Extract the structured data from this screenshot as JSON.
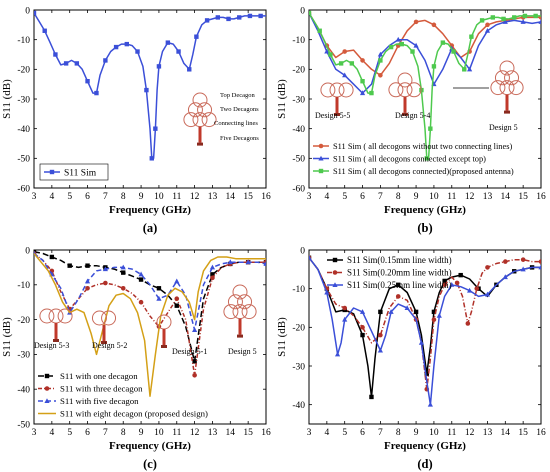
{
  "chart_data": [
    {
      "panel": "(a)",
      "type": "line",
      "xlabel": "Frequency (GHz)",
      "ylabel": "S11 (dB)",
      "xlim": [
        3,
        16
      ],
      "ylim": [
        -60,
        0
      ],
      "xticks": [
        3,
        4,
        5,
        6,
        7,
        8,
        9,
        10,
        11,
        12,
        13,
        14,
        15,
        16
      ],
      "yticks": [
        0,
        -10,
        -20,
        -30,
        -40,
        -50,
        -60
      ],
      "legend_position": "bottom-left",
      "series": [
        {
          "name": "S11 Sim",
          "color": "#3b4fd8",
          "marker": "square",
          "x": [
            3,
            3.3,
            3.6,
            3.9,
            4.2,
            4.5,
            4.8,
            5.1,
            5.4,
            5.7,
            6.0,
            6.3,
            6.5,
            6.7,
            7.0,
            7.3,
            7.6,
            7.9,
            8.2,
            8.5,
            8.8,
            9.1,
            9.3,
            9.5,
            9.6,
            9.7,
            9.8,
            9.9,
            10.0,
            10.2,
            10.5,
            10.8,
            11.1,
            11.4,
            11.7,
            11.9,
            12.1,
            12.4,
            12.7,
            13.0,
            13.3,
            13.6,
            13.9,
            14.2,
            14.5,
            14.8,
            15.1,
            15.4,
            15.7,
            16.0
          ],
          "values": [
            -1,
            -4,
            -7,
            -11,
            -15,
            -18.5,
            -18,
            -17,
            -18,
            -20,
            -24,
            -28,
            -28,
            -22,
            -17,
            -14,
            -12.5,
            -11.5,
            -11.5,
            -12,
            -14,
            -19,
            -27,
            -40,
            -50,
            -50,
            -40,
            -27,
            -19,
            -14,
            -11,
            -11.5,
            -14,
            -18,
            -20,
            -15,
            -9,
            -5,
            -3.5,
            -3,
            -2.5,
            -2.5,
            -3,
            -3,
            -2.5,
            -2,
            -2,
            -2,
            -2,
            -2
          ]
        }
      ],
      "annotations": [
        "Top Decagon",
        "Two Decagons",
        "Connecting lines",
        "Five Decagons"
      ]
    },
    {
      "panel": "(b)",
      "type": "line",
      "xlabel": "Frequency (GHz)",
      "ylabel": "S11 (dB)",
      "xlim": [
        3,
        16
      ],
      "ylim": [
        -60,
        0
      ],
      "xticks": [
        3,
        4,
        5,
        6,
        7,
        8,
        9,
        10,
        11,
        12,
        13,
        14,
        15,
        16
      ],
      "yticks": [
        0,
        -10,
        -20,
        -30,
        -40,
        -50,
        -60
      ],
      "legend_position": "bottom",
      "series": [
        {
          "name": "S11 Sim ( all decogons without two connecting lines)",
          "color": "#d45a3c",
          "marker": "circle",
          "x": [
            3,
            3.5,
            4,
            4.5,
            5,
            5.5,
            6,
            6.5,
            7,
            7.5,
            8,
            8.5,
            9,
            9.5,
            10,
            10.5,
            11,
            11.5,
            12,
            12.5,
            13,
            13.5,
            14,
            14.5,
            15,
            15.5,
            16
          ],
          "values": [
            -1,
            -6,
            -12,
            -16,
            -14,
            -13.5,
            -17,
            -20,
            -22,
            -18,
            -12,
            -7,
            -4,
            -3.5,
            -5,
            -8,
            -12,
            -16,
            -14,
            -8,
            -5,
            -4,
            -3.5,
            -3,
            -2.5,
            -2.5,
            -2.5
          ]
        },
        {
          "name": "S11 Sim ( all decogons connected except top)",
          "color": "#3b4fd8",
          "marker": "triangle",
          "x": [
            3,
            3.5,
            4,
            4.5,
            5,
            5.5,
            6,
            6.5,
            7,
            7.5,
            8,
            8.5,
            9,
            9.5,
            10,
            10.5,
            11,
            11.5,
            12,
            12.5,
            13,
            13.5,
            14,
            14.5,
            15,
            15.5,
            16
          ],
          "values": [
            -1,
            -7,
            -14,
            -20,
            -22,
            -25,
            -28,
            -25,
            -15,
            -12,
            -10,
            -10,
            -12,
            -17,
            -25,
            -20,
            -13,
            -16,
            -20,
            -12,
            -7,
            -5,
            -4,
            -3.5,
            -4,
            -4.5,
            -4
          ]
        },
        {
          "name": "S11 Sim ( all decogons connected)(proposed antenna)",
          "color": "#4ec94e",
          "marker": "square",
          "x": [
            3,
            3.3,
            3.6,
            3.9,
            4.2,
            4.5,
            4.8,
            5.1,
            5.4,
            5.7,
            6.0,
            6.3,
            6.5,
            6.7,
            7.0,
            7.3,
            7.6,
            7.9,
            8.2,
            8.5,
            8.8,
            9.1,
            9.3,
            9.5,
            9.6,
            9.7,
            9.8,
            9.9,
            10.0,
            10.2,
            10.5,
            10.8,
            11.1,
            11.4,
            11.7,
            11.9,
            12.1,
            12.4,
            12.7,
            13.0,
            13.3,
            13.6,
            13.9,
            14.2,
            14.5,
            14.8,
            15.1,
            15.4,
            15.7,
            16.0
          ],
          "values": [
            -1,
            -4,
            -7,
            -11,
            -15,
            -18.5,
            -18,
            -17,
            -18,
            -20,
            -24,
            -28,
            -28,
            -22,
            -17,
            -14,
            -12.5,
            -11.5,
            -11.5,
            -12,
            -14,
            -19,
            -27,
            -40,
            -50,
            -50,
            -40,
            -27,
            -19,
            -14,
            -11,
            -11.5,
            -14,
            -18,
            -20,
            -15,
            -9,
            -5,
            -3.5,
            -3,
            -2.5,
            -2.5,
            -3,
            -3,
            -2.5,
            -2,
            -2,
            -2,
            -2,
            -2
          ]
        }
      ],
      "annotations": [
        "Design 5-5",
        "Design 5-4",
        "Design 5"
      ]
    },
    {
      "panel": "(c)",
      "type": "line",
      "xlabel": "Frequency (GHz)",
      "ylabel": "S11 (dB)",
      "xlim": [
        3,
        16
      ],
      "ylim": [
        -50,
        0
      ],
      "xticks": [
        3,
        4,
        5,
        6,
        7,
        8,
        9,
        10,
        11,
        12,
        13,
        14,
        15,
        16
      ],
      "yticks": [
        0,
        -10,
        -20,
        -30,
        -40,
        -50
      ],
      "legend_position": "bottom-left",
      "series": [
        {
          "name": "S11 with one decagon",
          "color": "#000000",
          "marker": "square",
          "dash": "6,3",
          "x": [
            3,
            3.5,
            4,
            4.5,
            5,
            5.5,
            6,
            6.5,
            7,
            7.5,
            8,
            8.5,
            9,
            9.5,
            10,
            10.5,
            11,
            11.5,
            12,
            12.5,
            13,
            13.5,
            14,
            14.5,
            15,
            15.5,
            16
          ],
          "values": [
            -0.5,
            -1,
            -2,
            -3,
            -4.5,
            -5,
            -4.5,
            -4.5,
            -5,
            -5.5,
            -6.5,
            -7.5,
            -8.5,
            -10,
            -11,
            -13,
            -16,
            -22,
            -32,
            -14,
            -7,
            -5,
            -4,
            -3.5,
            -3.5,
            -3.5,
            -3.5
          ]
        },
        {
          "name": "S11 with three decagon",
          "color": "#b03028",
          "marker": "circle",
          "dash": "4,2,1,2",
          "x": [
            3,
            3.5,
            4,
            4.5,
            5,
            5.5,
            6,
            6.5,
            7,
            7.5,
            8,
            8.5,
            9,
            9.5,
            10,
            10.5,
            11,
            11.5,
            12,
            12.5,
            13,
            13.5,
            14,
            14.5,
            15,
            15.5,
            16
          ],
          "values": [
            -1,
            -3,
            -6,
            -12,
            -17,
            -14,
            -11,
            -10,
            -9.5,
            -10,
            -11,
            -12.5,
            -15,
            -19,
            -22,
            -18,
            -14,
            -20,
            -36,
            -17,
            -8,
            -5,
            -4,
            -3.5,
            -3.5,
            -3.5,
            -3.5
          ]
        },
        {
          "name": "S11 with five decagon",
          "color": "#3b4fd8",
          "marker": "triangle",
          "dash": "5,3",
          "x": [
            3,
            3.5,
            4,
            4.5,
            5,
            5.5,
            6,
            6.5,
            7,
            7.5,
            8,
            8.5,
            9,
            9.5,
            10,
            10.5,
            11,
            11.5,
            12,
            12.5,
            13,
            13.5,
            14,
            14.5,
            15,
            15.5,
            16
          ],
          "values": [
            -1,
            -3,
            -7,
            -11,
            -18,
            -14,
            -9,
            -6,
            -5.5,
            -5,
            -5,
            -5.5,
            -7,
            -10,
            -14,
            -13,
            -9,
            -13,
            -23,
            -10,
            -5,
            -4,
            -3.5,
            -3.5,
            -3.5,
            -3.5,
            -4
          ]
        },
        {
          "name": "S11 with eight decagon (proposed design)",
          "color": "#d4a017",
          "marker": "none",
          "dash": "",
          "x": [
            3,
            3.4,
            3.8,
            4.2,
            4.6,
            5.0,
            5.4,
            5.8,
            6.2,
            6.5,
            6.8,
            7.2,
            7.6,
            8.0,
            8.4,
            8.8,
            9.2,
            9.5,
            9.8,
            10.1,
            10.5,
            10.9,
            11.3,
            11.7,
            12.0,
            12.2,
            12.5,
            12.9,
            13.3,
            13.8,
            14.3,
            14.8,
            15.3,
            15.8,
            16.0
          ],
          "values": [
            -1,
            -3.5,
            -6,
            -10,
            -15,
            -18,
            -17,
            -18,
            -24,
            -30,
            -24,
            -16,
            -13,
            -12.5,
            -14,
            -18,
            -26,
            -42,
            -30,
            -19,
            -13,
            -11,
            -12,
            -15,
            -20,
            -12,
            -6,
            -3,
            -2,
            -2,
            -2.5,
            -2.5,
            -2.5,
            -2.5,
            -2.5
          ]
        }
      ],
      "annotations": [
        "Design 5-3",
        "Design 5-2",
        "Design 5-1",
        "Design 5"
      ]
    },
    {
      "panel": "(d)",
      "type": "line",
      "xlabel": "Frequency (GHz)",
      "ylabel": "S11 (dB)",
      "xlim": [
        3,
        16
      ],
      "ylim": [
        -45,
        0
      ],
      "xticks": [
        3,
        4,
        5,
        6,
        7,
        8,
        9,
        10,
        11,
        12,
        13,
        14,
        15,
        16
      ],
      "yticks": [
        0,
        -10,
        -20,
        -30,
        -40
      ],
      "legend_position": "top-left",
      "series": [
        {
          "name": "S11 Sim(0.15mm line width)",
          "color": "#000000",
          "marker": "square",
          "dash": "",
          "x": [
            3,
            3.5,
            4,
            4.5,
            5,
            5.5,
            6,
            6.3,
            6.5,
            6.7,
            7,
            7.5,
            8,
            8.5,
            9,
            9.3,
            9.6,
            9.8,
            10,
            10.3,
            10.6,
            11,
            11.5,
            12,
            12.5,
            13,
            13.5,
            14,
            14.5,
            15,
            15.5,
            16
          ],
          "values": [
            -2,
            -5,
            -10,
            -16,
            -15.5,
            -16.5,
            -22,
            -30,
            -38,
            -28,
            -16,
            -10,
            -9,
            -11,
            -16,
            -22,
            -32,
            -25,
            -16,
            -11,
            -8,
            -7,
            -6.5,
            -7.5,
            -10,
            -12,
            -9,
            -7,
            -5.5,
            -5,
            -4.5,
            -4.5
          ]
        },
        {
          "name": "S11 Sim(0.20mm line width)",
          "color": "#b03028",
          "marker": "circle",
          "dash": "5,2,1,2",
          "x": [
            3,
            3.5,
            4,
            4.5,
            5,
            5.5,
            6,
            6.5,
            7,
            7.5,
            8,
            8.5,
            9,
            9.3,
            9.6,
            9.8,
            10,
            10.3,
            10.6,
            11,
            11.3,
            11.6,
            11.9,
            12.1,
            12.4,
            12.7,
            13,
            13.5,
            14,
            14.5,
            15,
            15.5,
            16
          ],
          "values": [
            -2,
            -5,
            -10,
            -14,
            -15,
            -17,
            -20,
            -24,
            -22,
            -15,
            -12,
            -13,
            -18,
            -24,
            -36,
            -28,
            -18,
            -12,
            -9,
            -7,
            -8.5,
            -12,
            -19,
            -16,
            -10,
            -6,
            -4.5,
            -3.5,
            -3,
            -2.5,
            -2.5,
            -3,
            -3
          ]
        },
        {
          "name": "S11 Sim(0.25mm line width)",
          "color": "#3b4fd8",
          "marker": "triangle",
          "dash": "",
          "x": [
            3,
            3.5,
            4,
            4.3,
            4.6,
            4.8,
            5,
            5.5,
            6,
            6.5,
            7,
            7.3,
            7.6,
            8,
            8.5,
            9,
            9.3,
            9.6,
            9.8,
            10,
            10.3,
            10.6,
            11,
            11.5,
            12,
            12.5,
            13,
            13.5,
            14,
            14.5,
            15,
            15.5,
            16
          ],
          "values": [
            -2,
            -5,
            -11,
            -18,
            -27,
            -24,
            -18,
            -15,
            -16,
            -21,
            -26,
            -22,
            -16,
            -14,
            -15,
            -18,
            -24,
            -34,
            -40,
            -30,
            -17,
            -12,
            -9,
            -9.5,
            -10.5,
            -12,
            -11.5,
            -9,
            -7,
            -5.5,
            -5,
            -4.5,
            -4.5
          ]
        }
      ],
      "annotations": []
    }
  ]
}
